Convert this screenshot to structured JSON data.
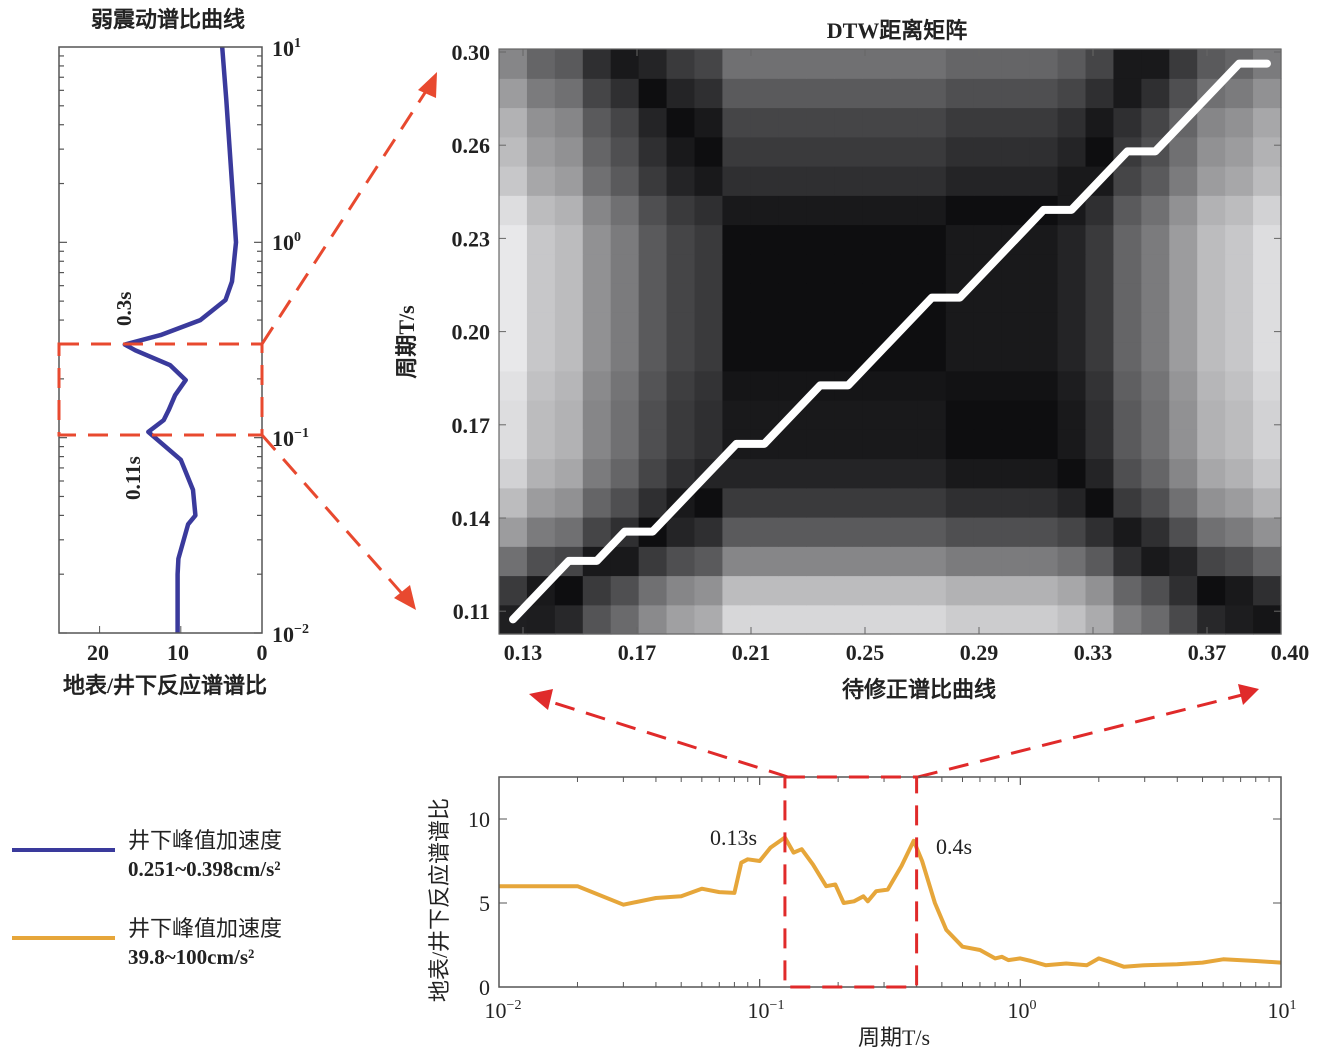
{
  "colors": {
    "blue": "#3a3a9c",
    "orange": "#e6a63a",
    "red_dash": "#e8492f",
    "red_dash2": "#e02a2a"
  },
  "legend": [
    {
      "label": "井下峰值加速度",
      "range": "0.251~0.398cm/s²",
      "color": "#3a3a9c"
    },
    {
      "label": "井下峰值加速度",
      "range": "39.8~100cm/s²",
      "color": "#e6a63a"
    }
  ],
  "chart_data": [
    {
      "type": "line",
      "title": "弱震动谱比曲线",
      "xlabel": "地表/井下反应谱谱比",
      "ylabel": "",
      "xlim": [
        25,
        0
      ],
      "ylim": [
        0.01,
        10
      ],
      "yscale": "log",
      "x_ticks": [
        "20",
        "10",
        "0"
      ],
      "x_tick_values": [
        20,
        10,
        0
      ],
      "y_ticks": [
        {
          "base": "10",
          "exp": "1",
          "value": 10
        },
        {
          "base": "10",
          "exp": "0",
          "value": 1
        },
        {
          "base": "10",
          "exp": "−1",
          "value": 0.1
        },
        {
          "base": "10",
          "exp": "−2",
          "value": 0.01
        }
      ],
      "annotations": [
        "0.3s",
        "0.11s"
      ],
      "highlight_period_range": [
        0.107,
        0.3
      ],
      "series": [
        {
          "name": "井下峰值加速度 0.251~0.398cm/s²",
          "period": [
            10,
            5.36,
            1.0,
            0.63,
            0.507,
            0.4,
            0.335,
            0.3,
            0.28,
            0.235,
            0.197,
            0.165,
            0.138,
            0.123,
            0.107,
            0.097,
            0.077,
            0.054,
            0.04,
            0.036,
            0.024,
            0.02,
            0.01
          ],
          "ratio": [
            4.9,
            4.4,
            3.2,
            3.7,
            4.5,
            7.6,
            12.5,
            16.9,
            15.6,
            11.3,
            9.4,
            10.7,
            11.5,
            12.1,
            14.0,
            12.8,
            10.0,
            8.5,
            8.2,
            9.1,
            10.3,
            10.4,
            10.4
          ]
        }
      ]
    },
    {
      "type": "heatmap",
      "title": "DTW距离矩阵",
      "xlabel": "待修正谱比曲线",
      "ylabel": "周期T/s",
      "x_ticks": [
        "0.13",
        "0.17",
        "0.21",
        "0.25",
        "0.29",
        "0.33",
        "0.37",
        "0.40"
      ],
      "y_ticks": [
        "0.30",
        "0.26",
        "0.23",
        "0.20",
        "0.17",
        "0.14",
        "0.11"
      ],
      "n_cols": 28,
      "n_rows": 20,
      "col_profile": [
        0,
        0.15,
        0.2,
        0.4,
        0.5,
        0.65,
        0.75,
        0.8,
        1,
        1,
        1,
        1,
        1,
        1,
        1,
        1,
        0.95,
        0.95,
        0.95,
        0.95,
        0.9,
        0.8,
        0.6,
        0.5,
        0.35,
        0.2,
        0.15,
        0.05
      ],
      "row_profile_bottom_to_top": [
        0.08,
        0.2,
        0.45,
        0.65,
        0.8,
        0.9,
        0.95,
        0.95,
        0.97,
        1,
        1,
        1,
        1,
        1,
        0.95,
        0.85,
        0.8,
        0.75,
        0.65,
        0.55
      ],
      "value_rule": "abs(col_profile - row_profile)",
      "warping_path_cells": [
        [
          0,
          0
        ],
        [
          2,
          2
        ],
        [
          3,
          2
        ],
        [
          4,
          3
        ],
        [
          5,
          3
        ],
        [
          8,
          6
        ],
        [
          9,
          6
        ],
        [
          11,
          8
        ],
        [
          12,
          8
        ],
        [
          15,
          11
        ],
        [
          16,
          11
        ],
        [
          19,
          14
        ],
        [
          20,
          14
        ],
        [
          22,
          16
        ],
        [
          23,
          16
        ],
        [
          26,
          19
        ],
        [
          27,
          19
        ]
      ]
    },
    {
      "type": "line",
      "title": "",
      "xlabel": "周期T/s",
      "ylabel": "地表/井下反应谱谱比",
      "xscale": "log",
      "xlim": [
        0.01,
        10
      ],
      "ylim": [
        0,
        12.5
      ],
      "x_ticks": [
        {
          "base": "10",
          "exp": "−2",
          "value": 0.01
        },
        {
          "base": "10",
          "exp": "−1",
          "value": 0.1
        },
        {
          "base": "10",
          "exp": "0",
          "value": 1
        },
        {
          "base": "10",
          "exp": "1",
          "value": 10
        }
      ],
      "y_ticks": [
        "0",
        "5",
        "10"
      ],
      "y_tick_values": [
        0,
        5,
        10
      ],
      "annotations": [
        "0.13s",
        "0.4s"
      ],
      "highlight_period_range": [
        0.125,
        0.4
      ],
      "series": [
        {
          "name": "井下峰值加速度 39.8~100cm/s²",
          "period": [
            0.01,
            0.02,
            0.03,
            0.04,
            0.05,
            0.06,
            0.07,
            0.08,
            0.085,
            0.09,
            0.1,
            0.11,
            0.125,
            0.135,
            0.145,
            0.16,
            0.18,
            0.195,
            0.21,
            0.23,
            0.25,
            0.26,
            0.28,
            0.31,
            0.35,
            0.39,
            0.42,
            0.47,
            0.52,
            0.6,
            0.7,
            0.8,
            0.85,
            0.9,
            1.0,
            1.1,
            1.25,
            1.5,
            1.8,
            2.0,
            2.2,
            2.5,
            3,
            4,
            5,
            6,
            8,
            10
          ],
          "ratio": [
            6.0,
            6.0,
            4.9,
            5.3,
            5.4,
            5.85,
            5.65,
            5.6,
            7.4,
            7.6,
            7.5,
            8.3,
            8.9,
            8.0,
            8.2,
            7.3,
            6.0,
            6.1,
            5.0,
            5.1,
            5.4,
            5.1,
            5.7,
            5.8,
            7.2,
            8.7,
            7.5,
            5.0,
            3.4,
            2.4,
            2.2,
            1.7,
            1.8,
            1.6,
            1.7,
            1.55,
            1.3,
            1.4,
            1.3,
            1.7,
            1.5,
            1.2,
            1.3,
            1.35,
            1.45,
            1.65,
            1.55,
            1.45
          ]
        }
      ]
    }
  ]
}
